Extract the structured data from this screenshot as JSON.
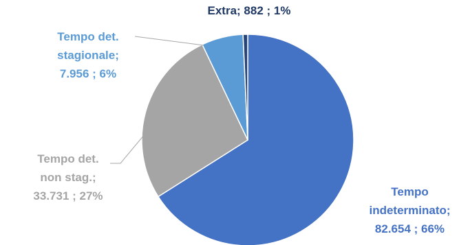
{
  "chart_data": {
    "type": "pie",
    "slices": [
      {
        "name_lines": [
          "Tempo",
          "indeterminato;"
        ],
        "value_text": "82.654 ; 66%",
        "value": 82654,
        "percent": 66,
        "color": "#4472C4"
      },
      {
        "name_lines": [
          "Tempo det.",
          "non stag.;"
        ],
        "value_text": "33.731 ; 27%",
        "value": 33731,
        "percent": 27,
        "color": "#A5A5A5"
      },
      {
        "name_lines": [
          "Tempo  det.",
          "stagionale;"
        ],
        "value_text": "7.956 ; 6%",
        "value": 7956,
        "percent": 6,
        "color": "#5B9BD5"
      },
      {
        "name_lines": [
          "Extra;  882 ; 1%"
        ],
        "value_text": "",
        "value": 882,
        "percent": 1,
        "color": "#264478"
      }
    ]
  }
}
